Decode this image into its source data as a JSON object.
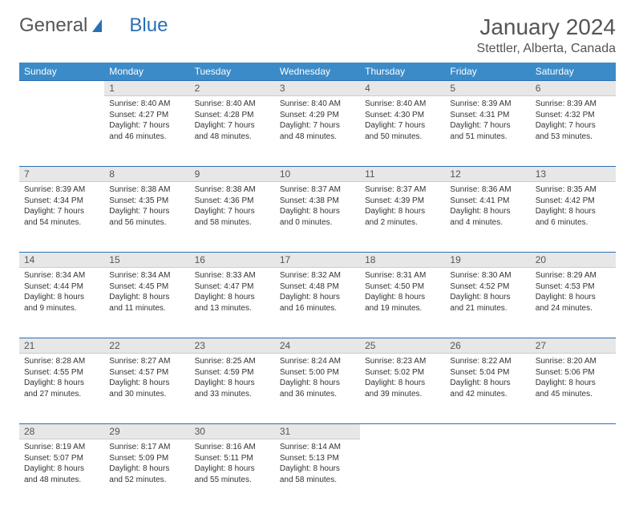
{
  "logo": {
    "text1": "General",
    "text2": "Blue"
  },
  "title": "January 2024",
  "location": "Stettler, Alberta, Canada",
  "colors": {
    "header_bg": "#3b8bc8",
    "daynum_bg": "#e7e7e7",
    "week_divider": "#2a6fb5",
    "text": "#333333",
    "muted": "#555555"
  },
  "day_headers": [
    "Sunday",
    "Monday",
    "Tuesday",
    "Wednesday",
    "Thursday",
    "Friday",
    "Saturday"
  ],
  "weeks": [
    [
      null,
      {
        "n": "1",
        "sr": "8:40 AM",
        "ss": "4:27 PM",
        "dl": "7 hours and 46 minutes."
      },
      {
        "n": "2",
        "sr": "8:40 AM",
        "ss": "4:28 PM",
        "dl": "7 hours and 48 minutes."
      },
      {
        "n": "3",
        "sr": "8:40 AM",
        "ss": "4:29 PM",
        "dl": "7 hours and 48 minutes."
      },
      {
        "n": "4",
        "sr": "8:40 AM",
        "ss": "4:30 PM",
        "dl": "7 hours and 50 minutes."
      },
      {
        "n": "5",
        "sr": "8:39 AM",
        "ss": "4:31 PM",
        "dl": "7 hours and 51 minutes."
      },
      {
        "n": "6",
        "sr": "8:39 AM",
        "ss": "4:32 PM",
        "dl": "7 hours and 53 minutes."
      }
    ],
    [
      {
        "n": "7",
        "sr": "8:39 AM",
        "ss": "4:34 PM",
        "dl": "7 hours and 54 minutes."
      },
      {
        "n": "8",
        "sr": "8:38 AM",
        "ss": "4:35 PM",
        "dl": "7 hours and 56 minutes."
      },
      {
        "n": "9",
        "sr": "8:38 AM",
        "ss": "4:36 PM",
        "dl": "7 hours and 58 minutes."
      },
      {
        "n": "10",
        "sr": "8:37 AM",
        "ss": "4:38 PM",
        "dl": "8 hours and 0 minutes."
      },
      {
        "n": "11",
        "sr": "8:37 AM",
        "ss": "4:39 PM",
        "dl": "8 hours and 2 minutes."
      },
      {
        "n": "12",
        "sr": "8:36 AM",
        "ss": "4:41 PM",
        "dl": "8 hours and 4 minutes."
      },
      {
        "n": "13",
        "sr": "8:35 AM",
        "ss": "4:42 PM",
        "dl": "8 hours and 6 minutes."
      }
    ],
    [
      {
        "n": "14",
        "sr": "8:34 AM",
        "ss": "4:44 PM",
        "dl": "8 hours and 9 minutes."
      },
      {
        "n": "15",
        "sr": "8:34 AM",
        "ss": "4:45 PM",
        "dl": "8 hours and 11 minutes."
      },
      {
        "n": "16",
        "sr": "8:33 AM",
        "ss": "4:47 PM",
        "dl": "8 hours and 13 minutes."
      },
      {
        "n": "17",
        "sr": "8:32 AM",
        "ss": "4:48 PM",
        "dl": "8 hours and 16 minutes."
      },
      {
        "n": "18",
        "sr": "8:31 AM",
        "ss": "4:50 PM",
        "dl": "8 hours and 19 minutes."
      },
      {
        "n": "19",
        "sr": "8:30 AM",
        "ss": "4:52 PM",
        "dl": "8 hours and 21 minutes."
      },
      {
        "n": "20",
        "sr": "8:29 AM",
        "ss": "4:53 PM",
        "dl": "8 hours and 24 minutes."
      }
    ],
    [
      {
        "n": "21",
        "sr": "8:28 AM",
        "ss": "4:55 PM",
        "dl": "8 hours and 27 minutes."
      },
      {
        "n": "22",
        "sr": "8:27 AM",
        "ss": "4:57 PM",
        "dl": "8 hours and 30 minutes."
      },
      {
        "n": "23",
        "sr": "8:25 AM",
        "ss": "4:59 PM",
        "dl": "8 hours and 33 minutes."
      },
      {
        "n": "24",
        "sr": "8:24 AM",
        "ss": "5:00 PM",
        "dl": "8 hours and 36 minutes."
      },
      {
        "n": "25",
        "sr": "8:23 AM",
        "ss": "5:02 PM",
        "dl": "8 hours and 39 minutes."
      },
      {
        "n": "26",
        "sr": "8:22 AM",
        "ss": "5:04 PM",
        "dl": "8 hours and 42 minutes."
      },
      {
        "n": "27",
        "sr": "8:20 AM",
        "ss": "5:06 PM",
        "dl": "8 hours and 45 minutes."
      }
    ],
    [
      {
        "n": "28",
        "sr": "8:19 AM",
        "ss": "5:07 PM",
        "dl": "8 hours and 48 minutes."
      },
      {
        "n": "29",
        "sr": "8:17 AM",
        "ss": "5:09 PM",
        "dl": "8 hours and 52 minutes."
      },
      {
        "n": "30",
        "sr": "8:16 AM",
        "ss": "5:11 PM",
        "dl": "8 hours and 55 minutes."
      },
      {
        "n": "31",
        "sr": "8:14 AM",
        "ss": "5:13 PM",
        "dl": "8 hours and 58 minutes."
      },
      null,
      null,
      null
    ]
  ],
  "labels": {
    "sunrise": "Sunrise:",
    "sunset": "Sunset:",
    "daylight": "Daylight:"
  }
}
